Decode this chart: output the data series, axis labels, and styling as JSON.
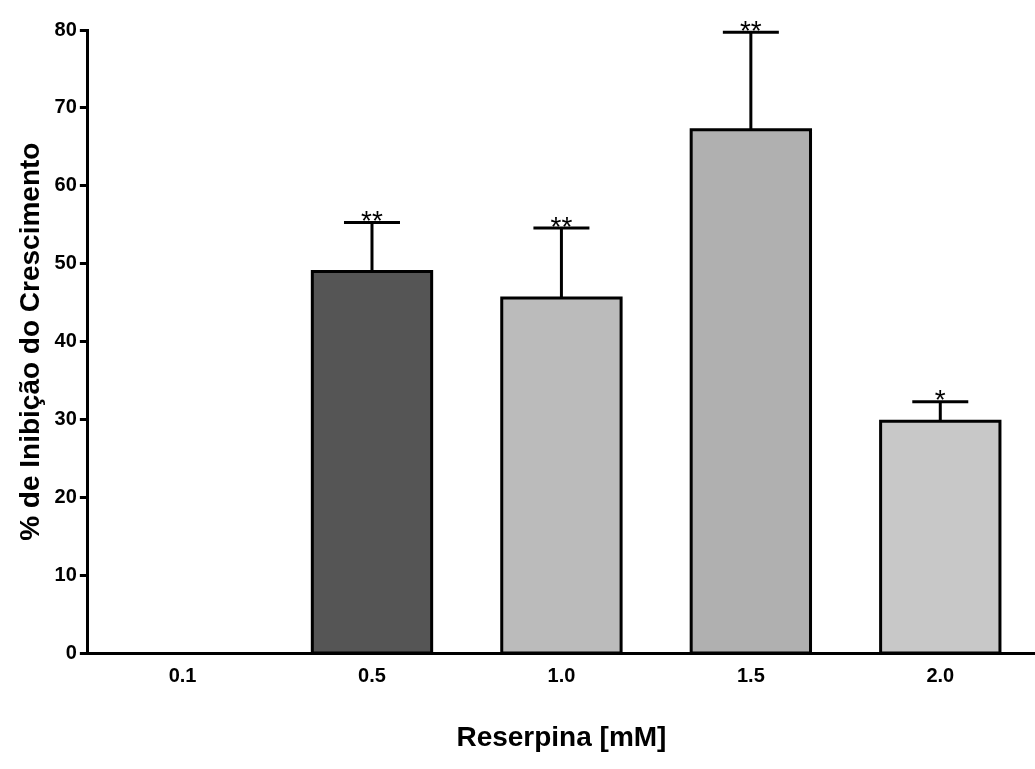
{
  "chart_data": {
    "type": "bar",
    "xlabel": "Reserpina [mM]",
    "ylabel": "% de Inibição do Crescimento",
    "categories": [
      "0.1",
      "0.5",
      "1.0",
      "1.5",
      "2.0"
    ],
    "values": [
      0,
      49.0,
      45.6,
      67.2,
      29.8
    ],
    "errors": [
      null,
      [
        49.0,
        55.3
      ],
      [
        45.6,
        54.6
      ],
      [
        67.2,
        79.7
      ],
      [
        29.8,
        32.3
      ]
    ],
    "colors": [
      "#000000",
      "#555555",
      "#bbbbbb",
      "#b0b0b0",
      "#c8c8c8"
    ],
    "ylim": [
      0,
      80
    ],
    "yticks": [
      0,
      10,
      20,
      30,
      40,
      50,
      60,
      70,
      80
    ],
    "grid": false,
    "legend": false,
    "annotations": [
      "**",
      "**",
      "**",
      "*"
    ]
  }
}
